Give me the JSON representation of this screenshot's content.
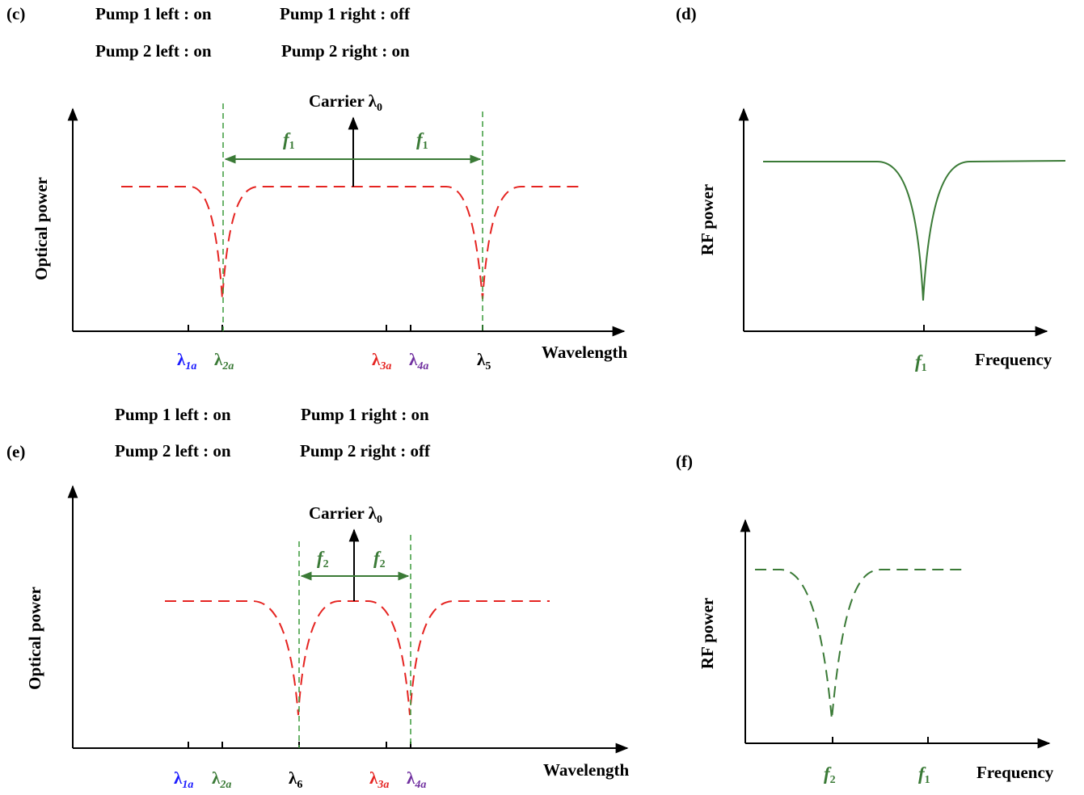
{
  "colors": {
    "lambda1": "#1a1aff",
    "lambda2": "#3a7a36",
    "lambda3": "#e52421",
    "lambda4": "#7030a0",
    "lambda_black": "#000000",
    "optical_curve": "#e52421",
    "rf_curve": "#3a7a36"
  },
  "panel_c": {
    "label": "(c)",
    "pump1_left": "Pump 1 left :  on",
    "pump1_right": "Pump 1 right :  off",
    "pump2_left": "Pump 2 left :  on",
    "pump2_right": "Pump 2 right :  on",
    "carrier": "Carrier λ",
    "carrier_sub": "0",
    "y_axis": "Optical power",
    "x_axis": "Wavelength",
    "f_left": "f",
    "f_left_sub": "1",
    "f_right": "f",
    "f_right_sub": "1",
    "ticks": [
      {
        "sym": "λ",
        "sub": "1a",
        "color": "lambda1"
      },
      {
        "sym": "λ",
        "sub": "2a",
        "color": "lambda2"
      },
      {
        "sym": "λ",
        "sub": "3a",
        "color": "lambda3"
      },
      {
        "sym": "λ",
        "sub": "4a",
        "color": "lambda4"
      },
      {
        "sym": "λ",
        "sub": "5",
        "color": "lambda_black"
      }
    ]
  },
  "panel_d": {
    "label": "(d)",
    "y_axis": "RF power",
    "x_axis": "Frequency",
    "tick1": "f",
    "tick1_sub": "1"
  },
  "panel_e": {
    "label": "(e)",
    "pump1_left": "Pump 1 left :  on",
    "pump1_right": "Pump 1 right :  on",
    "pump2_left": "Pump 2 left :  on",
    "pump2_right": "Pump 2 right :  off",
    "carrier": "Carrier λ",
    "carrier_sub": "0",
    "y_axis": "Optical power",
    "x_axis": "Wavelength",
    "f_left": "f",
    "f_left_sub": "2",
    "f_right": "f",
    "f_right_sub": "2",
    "ticks": [
      {
        "sym": "λ",
        "sub": "1a",
        "color": "lambda1"
      },
      {
        "sym": "λ",
        "sub": "2a",
        "color": "lambda2"
      },
      {
        "sym": "λ",
        "sub": "6",
        "color": "lambda_black"
      },
      {
        "sym": "λ",
        "sub": "3a",
        "color": "lambda3"
      },
      {
        "sym": "λ",
        "sub": "4a",
        "color": "lambda4"
      }
    ]
  },
  "panel_f": {
    "label": "(f)",
    "y_axis": "RF power",
    "x_axis": "Frequency",
    "tick1": "f",
    "tick1_sub": "2",
    "tick2": "f",
    "tick2_sub": "1"
  }
}
